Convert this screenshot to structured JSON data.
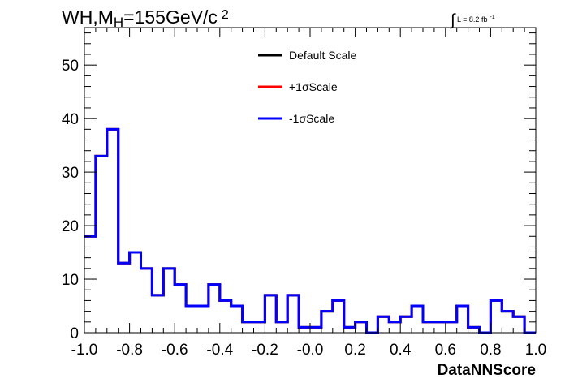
{
  "title": {
    "prefix": "WH,M",
    "subscript": "H",
    "value": "=155GeV/c",
    "superscript": "2"
  },
  "lumi": {
    "integral_symbol": "∫",
    "text": "L = 8.2 fb",
    "superscript": "-1"
  },
  "chart_data": {
    "type": "line",
    "style": "step-histogram",
    "xlabel": "DataNNScore",
    "ylabel": "",
    "xlim": [
      -1.0,
      1.0
    ],
    "ylim": [
      0,
      57
    ],
    "x_ticks": [
      "-1.0",
      "-0.8",
      "-0.6",
      "-0.4",
      "-0.2",
      "-0.0",
      "0.2",
      "0.4",
      "0.6",
      "0.8",
      "1.0"
    ],
    "y_ticks": [
      "0",
      "10",
      "20",
      "30",
      "40",
      "50"
    ],
    "bin_edges": [
      -1.0,
      -0.95,
      -0.9,
      -0.85,
      -0.8,
      -0.75,
      -0.7,
      -0.65,
      -0.6,
      -0.55,
      -0.5,
      -0.45,
      -0.4,
      -0.35,
      -0.3,
      -0.25,
      -0.2,
      -0.15,
      -0.1,
      -0.05,
      0.0,
      0.05,
      0.1,
      0.15,
      0.2,
      0.25,
      0.3,
      0.35,
      0.4,
      0.45,
      0.5,
      0.55,
      0.6,
      0.65,
      0.7,
      0.75,
      0.8,
      0.85,
      0.9,
      0.95,
      1.0
    ],
    "series": [
      {
        "name": "Default Scale",
        "color": "#000000",
        "values": [
          18,
          33,
          38,
          13,
          15,
          12,
          7,
          12,
          9,
          5,
          5,
          9,
          6,
          5,
          2,
          2,
          7,
          2,
          7,
          1,
          1,
          4,
          6,
          1,
          2,
          0,
          3,
          2,
          3,
          5,
          2,
          2,
          2,
          5,
          1,
          0,
          6,
          4,
          3,
          0
        ]
      },
      {
        "name": "+1σScale",
        "color": "#ff0000",
        "values": [
          18,
          33,
          38,
          13,
          15,
          12,
          7,
          12,
          9,
          5,
          5,
          9,
          6,
          5,
          2,
          2,
          7,
          2,
          7,
          1,
          1,
          4,
          6,
          1,
          2,
          0,
          3,
          2,
          3,
          5,
          2,
          2,
          2,
          5,
          1,
          0,
          6,
          4,
          3,
          0
        ]
      },
      {
        "name": "-1σScale",
        "color": "#0000ff",
        "values": [
          18,
          33,
          38,
          13,
          15,
          12,
          7,
          12,
          9,
          5,
          5,
          9,
          6,
          5,
          2,
          2,
          7,
          2,
          7,
          1,
          1,
          4,
          6,
          1,
          2,
          0,
          3,
          2,
          3,
          5,
          2,
          2,
          2,
          5,
          1,
          0,
          6,
          4,
          3,
          0
        ]
      }
    ],
    "legend": {
      "position": "top-center",
      "entries": [
        {
          "label": "Default Scale",
          "color": "#000000"
        },
        {
          "label": "+1σScale",
          "color": "#ff0000"
        },
        {
          "label": "-1σScale",
          "color": "#0000ff"
        }
      ]
    },
    "grid": false
  }
}
